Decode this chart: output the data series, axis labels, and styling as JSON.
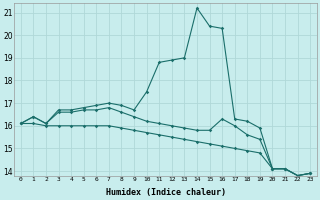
{
  "xlabel": "Humidex (Indice chaleur)",
  "xlim": [
    -0.5,
    23.5
  ],
  "ylim": [
    13.8,
    21.4
  ],
  "yticks": [
    14,
    15,
    16,
    17,
    18,
    19,
    20,
    21
  ],
  "xticks": [
    0,
    1,
    2,
    3,
    4,
    5,
    6,
    7,
    8,
    9,
    10,
    11,
    12,
    13,
    14,
    15,
    16,
    17,
    18,
    19,
    20,
    21,
    22,
    23
  ],
  "bg_color": "#c8eded",
  "line_color": "#1a6e6a",
  "grid_color": "#b0d8d8",
  "line1_x": [
    0,
    1,
    2,
    3,
    4,
    5,
    6,
    7,
    8,
    9,
    10,
    11,
    12,
    13,
    14,
    15,
    16,
    17,
    18,
    19,
    20,
    21,
    22,
    23
  ],
  "line1_y": [
    16.1,
    16.4,
    16.1,
    16.7,
    16.7,
    16.8,
    16.9,
    17.0,
    16.9,
    16.7,
    17.5,
    18.8,
    18.9,
    19.0,
    21.2,
    20.4,
    20.3,
    16.3,
    16.2,
    15.9,
    14.1,
    14.1,
    13.8,
    13.9
  ],
  "line2_x": [
    0,
    1,
    2,
    3,
    4,
    5,
    6,
    7,
    8,
    9,
    10,
    11,
    12,
    13,
    14,
    15,
    16,
    17,
    18,
    19,
    20,
    21,
    22,
    23
  ],
  "line2_y": [
    16.1,
    16.4,
    16.1,
    16.6,
    16.6,
    16.7,
    16.7,
    16.8,
    16.6,
    16.4,
    16.2,
    16.1,
    16.0,
    15.9,
    15.8,
    15.8,
    16.3,
    16.0,
    15.6,
    15.4,
    14.1,
    14.1,
    13.8,
    13.9
  ],
  "line3_x": [
    0,
    1,
    2,
    3,
    4,
    5,
    6,
    7,
    8,
    9,
    10,
    11,
    12,
    13,
    14,
    15,
    16,
    17,
    18,
    19,
    20,
    21,
    22,
    23
  ],
  "line3_y": [
    16.1,
    16.1,
    16.0,
    16.0,
    16.0,
    16.0,
    16.0,
    16.0,
    15.9,
    15.8,
    15.7,
    15.6,
    15.5,
    15.4,
    15.3,
    15.2,
    15.1,
    15.0,
    14.9,
    14.8,
    14.1,
    14.1,
    13.8,
    13.9
  ]
}
